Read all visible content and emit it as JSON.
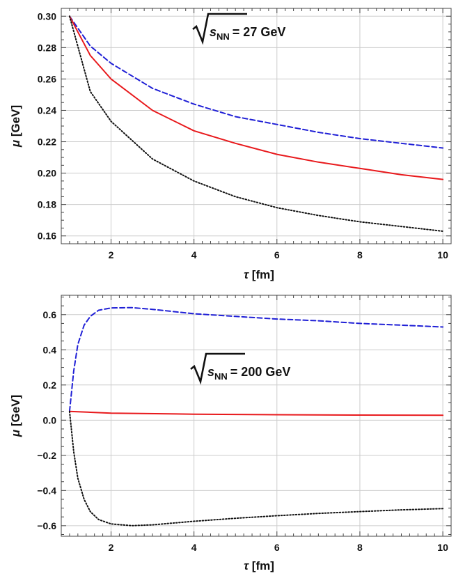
{
  "chart_data": [
    {
      "type": "line",
      "annotation": {
        "prefix": "s",
        "subscript": "NN",
        "suffix": "= 27 GeV"
      },
      "xlabel": {
        "symbol": "τ",
        "unit": "[fm]"
      },
      "ylabel": {
        "symbol": "μ",
        "unit": "[GeV]"
      },
      "xlim": [
        0.8,
        10.2
      ],
      "ylim": [
        0.155,
        0.305
      ],
      "xticks": [
        2,
        4,
        6,
        8,
        10
      ],
      "xtick_labels": [
        "2",
        "4",
        "6",
        "8",
        "10"
      ],
      "yticks": [
        0.16,
        0.18,
        0.2,
        0.22,
        0.24,
        0.26,
        0.28,
        0.3
      ],
      "ytick_labels": [
        "0.16",
        "0.18",
        "0.20",
        "0.22",
        "0.24",
        "0.26",
        "0.28",
        "0.30"
      ],
      "grid": true,
      "series": [
        {
          "color": "#1f1fd6",
          "style": "dashed",
          "x": [
            1,
            1.5,
            2,
            3,
            4,
            5,
            6,
            7,
            8,
            9,
            10
          ],
          "y": [
            0.3,
            0.281,
            0.27,
            0.254,
            0.244,
            0.236,
            0.231,
            0.226,
            0.222,
            0.219,
            0.216
          ]
        },
        {
          "color": "#e8191c",
          "style": "solid",
          "x": [
            1,
            1.5,
            2,
            3,
            4,
            5,
            6,
            7,
            8,
            9,
            10
          ],
          "y": [
            0.3,
            0.275,
            0.26,
            0.24,
            0.227,
            0.219,
            0.212,
            0.207,
            0.203,
            0.199,
            0.196
          ]
        },
        {
          "color": "#111111",
          "style": "dotted",
          "x": [
            1,
            1.5,
            2,
            3,
            4,
            5,
            6,
            7,
            8,
            9,
            10
          ],
          "y": [
            0.3,
            0.252,
            0.233,
            0.209,
            0.195,
            0.185,
            0.178,
            0.173,
            0.169,
            0.166,
            0.163
          ]
        }
      ]
    },
    {
      "type": "line",
      "annotation": {
        "prefix": "s",
        "subscript": "NN",
        "suffix": "= 200 GeV"
      },
      "xlabel": {
        "symbol": "τ",
        "unit": "[fm]"
      },
      "ylabel": {
        "symbol": "μ",
        "unit": "[GeV]"
      },
      "xlim": [
        0.8,
        10.2
      ],
      "ylim": [
        -0.66,
        0.71
      ],
      "xticks": [
        2,
        4,
        6,
        8,
        10
      ],
      "xtick_labels": [
        "2",
        "4",
        "6",
        "8",
        "10"
      ],
      "yticks": [
        -0.6,
        -0.4,
        -0.2,
        0.0,
        0.2,
        0.4,
        0.6
      ],
      "ytick_labels": [
        "−0.6",
        "−0.4",
        "−0.2",
        "0.0",
        "0.2",
        "0.4",
        "0.6"
      ],
      "grid": true,
      "series": [
        {
          "color": "#1f1fd6",
          "style": "dashed",
          "x": [
            1,
            1.1,
            1.2,
            1.35,
            1.5,
            1.7,
            2,
            2.5,
            3,
            4,
            5,
            6,
            7,
            8,
            9,
            10
          ],
          "y": [
            0.05,
            0.28,
            0.43,
            0.54,
            0.59,
            0.625,
            0.638,
            0.64,
            0.63,
            0.605,
            0.59,
            0.575,
            0.565,
            0.55,
            0.54,
            0.53
          ]
        },
        {
          "color": "#e8191c",
          "style": "solid",
          "x": [
            1,
            2,
            4,
            6,
            8,
            10
          ],
          "y": [
            0.05,
            0.04,
            0.034,
            0.031,
            0.029,
            0.028
          ]
        },
        {
          "color": "#111111",
          "style": "dotted",
          "x": [
            1,
            1.1,
            1.2,
            1.35,
            1.5,
            1.7,
            2,
            2.5,
            3,
            4,
            5,
            6,
            7,
            8,
            9,
            10
          ],
          "y": [
            0.05,
            -0.18,
            -0.33,
            -0.45,
            -0.52,
            -0.565,
            -0.59,
            -0.6,
            -0.595,
            -0.575,
            -0.558,
            -0.543,
            -0.53,
            -0.52,
            -0.51,
            -0.503
          ]
        }
      ]
    }
  ]
}
